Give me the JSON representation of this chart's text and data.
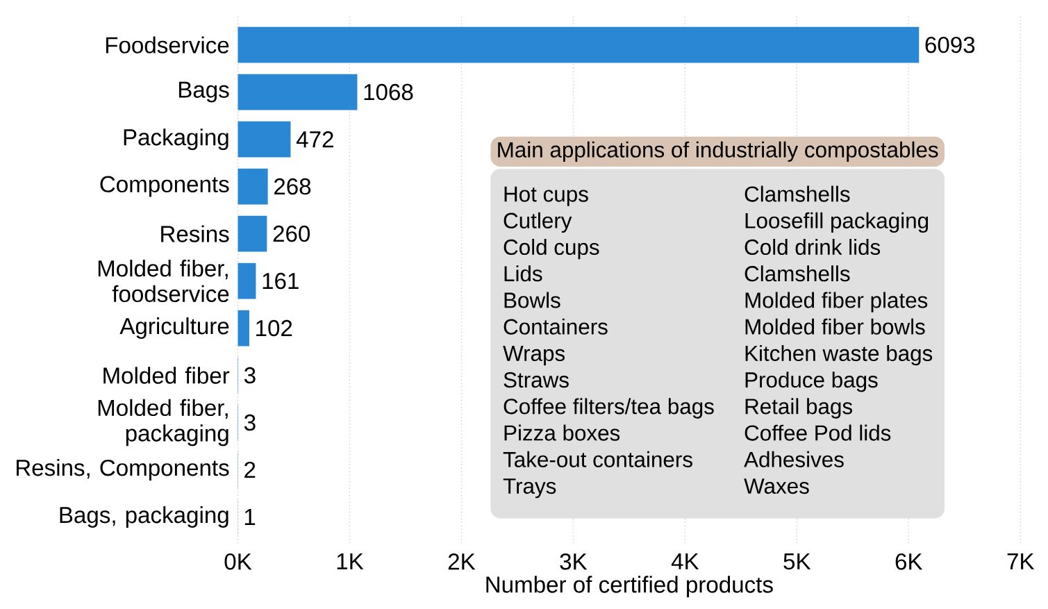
{
  "chart_data": {
    "type": "bar",
    "orientation": "horizontal",
    "xlabel": "Number of certified products",
    "categories": [
      "Foodservice",
      "Bags",
      "Packaging",
      "Components",
      "Resins",
      "Molded fiber, foodservice",
      "Agriculture",
      "Molded fiber",
      "Molded fiber, packaging",
      "Resins, Components",
      "Bags, packaging"
    ],
    "values": [
      6093,
      1068,
      472,
      268,
      260,
      161,
      102,
      3,
      3,
      2,
      1
    ],
    "color": "#2a87d3",
    "data_labels": true,
    "grid": "x",
    "xlim": [
      0,
      7000
    ],
    "xticks": [
      {
        "value": 0,
        "label": "0K"
      },
      {
        "value": 1000,
        "label": "1K"
      },
      {
        "value": 2000,
        "label": "2K"
      },
      {
        "value": 3000,
        "label": "3K"
      },
      {
        "value": 4000,
        "label": "4K"
      },
      {
        "value": 5000,
        "label": "5K"
      },
      {
        "value": 6000,
        "label": "6K"
      },
      {
        "value": 7000,
        "label": "7K"
      }
    ],
    "annotations": [
      "Main applications of industrially compostables",
      "Hot cups",
      "Cutlery",
      "Cold cups",
      "Lids",
      "Bowls",
      "Containers",
      "Wraps",
      "Straws",
      "Coffee filters/tea bags",
      "Pizza boxes",
      "Take-out containers",
      "Trays",
      "Clamshells",
      "Loosefill packaging",
      "Cold drink lids",
      "Clamshells",
      "Molded fiber plates",
      "Molded fiber bowls",
      "Kitchen waste bags",
      "Produce bags",
      "Retail bags",
      "Coffee Pod lids",
      "Adhesives",
      "Waxes"
    ]
  }
}
